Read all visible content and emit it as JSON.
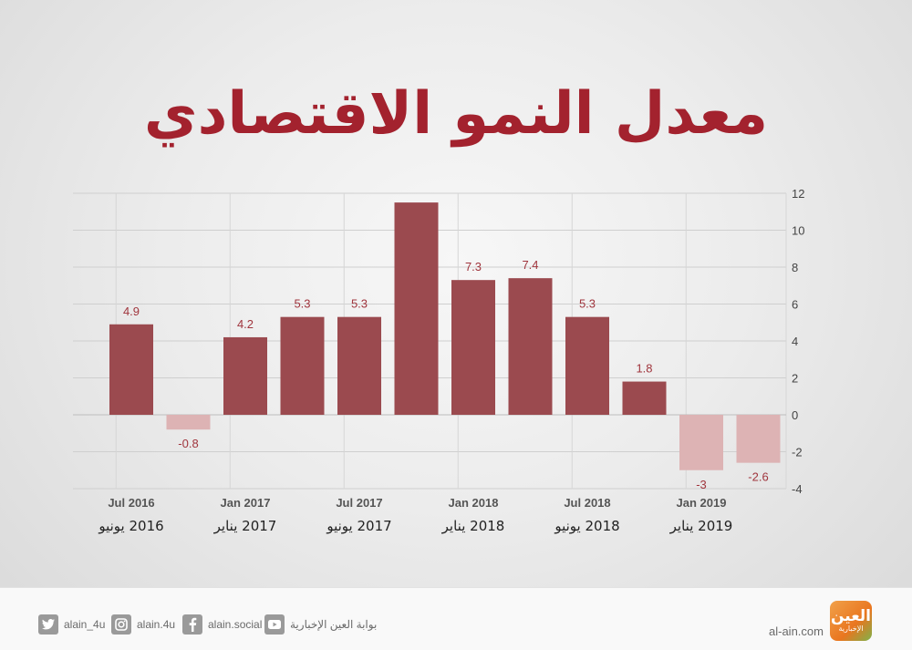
{
  "title": "معدل النمو الاقتصادي",
  "colors": {
    "positive": "#9b4a4f",
    "negative": "#ddb3b4",
    "label": "#a0353d",
    "title": "#a3222e"
  },
  "chart_data": {
    "type": "bar",
    "values": [
      4.9,
      -0.8,
      4.2,
      5.3,
      5.3,
      11.5,
      7.3,
      7.4,
      5.3,
      1.8,
      -3,
      -2.6
    ],
    "data_labels": [
      "4.9",
      "-0.8",
      "4.2",
      "5.3",
      "5.3",
      "",
      "7.3",
      "7.4",
      "5.3",
      "1.8",
      "-3",
      "-2.6"
    ],
    "ylim": [
      -4,
      12
    ],
    "y_ticks": [
      "-4",
      "-2",
      "0",
      "2",
      "4",
      "6",
      "8",
      "10",
      "12"
    ],
    "x_tick_labels": [
      {
        "en": "Jul 2016",
        "ar": "2016 يونيو",
        "index": 0
      },
      {
        "en": "Jan 2017",
        "ar": "2017 يناير",
        "index": 2
      },
      {
        "en": "Jul 2017",
        "ar": "2017 يونيو",
        "index": 4
      },
      {
        "en": "Jan 2018",
        "ar": "2018 يناير",
        "index": 6
      },
      {
        "en": "Jul 2018",
        "ar": "2018 يونيو",
        "index": 8
      },
      {
        "en": "Jan 2019",
        "ar": "2019 يناير",
        "index": 10
      }
    ],
    "grid": true,
    "y_axis_position": "right"
  },
  "footer": {
    "social": [
      {
        "label": "alain_4u",
        "icon": "twitter-icon"
      },
      {
        "label": "alain.4u",
        "icon": "instagram-icon"
      },
      {
        "label": "alain.social",
        "icon": "facebook-icon"
      },
      {
        "label": "بوابة العين الإخبارية",
        "icon": "youtube-icon"
      }
    ],
    "site": "al-ain.com",
    "logo_line1": "العين",
    "logo_line2": "الإخبارية"
  }
}
